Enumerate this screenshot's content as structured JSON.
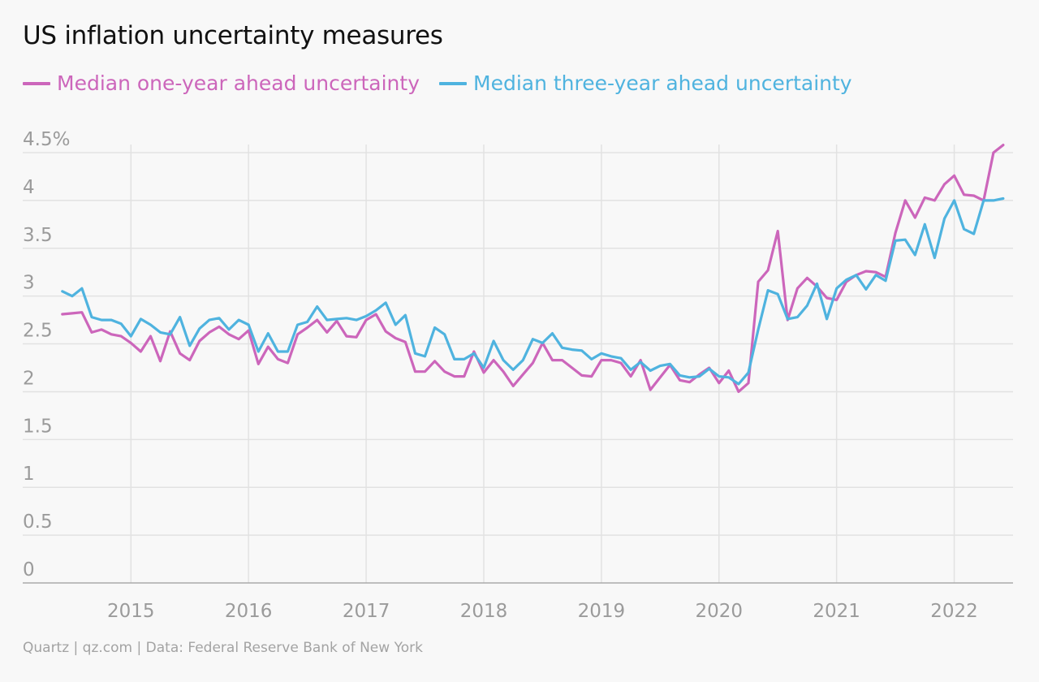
{
  "title": "US inflation uncertainty measures",
  "footer": "Quartz | qz.com | Data: Federal Reserve Bank of New York",
  "colors": {
    "one_year": "#cc66bb",
    "three_year": "#4fb3df",
    "grid": "#e2e2e2",
    "axis": "#aaaaaa"
  },
  "chart_data": {
    "type": "line",
    "title": "US inflation uncertainty measures",
    "xlabel": "",
    "ylabel": "",
    "ylim": [
      0,
      4.5
    ],
    "xlim": [
      2014.08,
      2022.5
    ],
    "y_ticks": [
      {
        "value": 0,
        "label": "0"
      },
      {
        "value": 0.5,
        "label": "0.5"
      },
      {
        "value": 1,
        "label": "1"
      },
      {
        "value": 1.5,
        "label": "1.5"
      },
      {
        "value": 2,
        "label": "2"
      },
      {
        "value": 2.5,
        "label": "2.5"
      },
      {
        "value": 3,
        "label": "3"
      },
      {
        "value": 3.5,
        "label": "3.5"
      },
      {
        "value": 4,
        "label": "4"
      },
      {
        "value": 4.5,
        "label": "4.5%"
      }
    ],
    "x_ticks": [
      {
        "value": 2015,
        "label": "2015"
      },
      {
        "value": 2016,
        "label": "2016"
      },
      {
        "value": 2017,
        "label": "2017"
      },
      {
        "value": 2018,
        "label": "2018"
      },
      {
        "value": 2019,
        "label": "2019"
      },
      {
        "value": 2020,
        "label": "2020"
      },
      {
        "value": 2021,
        "label": "2021"
      },
      {
        "value": 2022,
        "label": "2022"
      }
    ],
    "grid": true,
    "legend_position": "top-left",
    "x_start": "2014-06",
    "x_step": "month",
    "series": [
      {
        "name": "Median one-year ahead uncertainty",
        "color": "#cc66bb",
        "values": [
          2.81,
          2.82,
          2.83,
          2.62,
          2.65,
          2.6,
          2.58,
          2.51,
          2.42,
          2.58,
          2.32,
          2.63,
          2.4,
          2.33,
          2.53,
          2.62,
          2.68,
          2.6,
          2.55,
          2.64,
          2.29,
          2.47,
          2.34,
          2.3,
          2.6,
          2.67,
          2.75,
          2.62,
          2.74,
          2.58,
          2.57,
          2.75,
          2.81,
          2.63,
          2.56,
          2.52,
          2.21,
          2.21,
          2.32,
          2.21,
          2.16,
          2.16,
          2.42,
          2.2,
          2.33,
          2.21,
          2.06,
          2.18,
          2.3,
          2.51,
          2.33,
          2.33,
          2.25,
          2.17,
          2.16,
          2.33,
          2.33,
          2.3,
          2.16,
          2.33,
          2.02,
          2.15,
          2.28,
          2.12,
          2.1,
          2.18,
          2.25,
          2.09,
          2.22,
          2.0,
          2.09,
          3.15,
          3.27,
          3.68,
          2.75,
          3.08,
          3.19,
          3.1,
          2.98,
          2.96,
          3.15,
          3.22,
          3.26,
          3.25,
          3.2,
          3.66,
          4.0,
          3.82,
          4.03,
          4.0,
          4.17,
          4.26,
          4.06,
          4.05,
          4.0,
          4.5,
          4.58
        ]
      },
      {
        "name": "Median three-year ahead uncertainty",
        "color": "#4fb3df",
        "values": [
          3.05,
          3.0,
          3.08,
          2.78,
          2.75,
          2.75,
          2.71,
          2.58,
          2.76,
          2.7,
          2.62,
          2.6,
          2.78,
          2.48,
          2.66,
          2.75,
          2.77,
          2.65,
          2.75,
          2.7,
          2.42,
          2.61,
          2.42,
          2.42,
          2.7,
          2.73,
          2.89,
          2.75,
          2.76,
          2.77,
          2.75,
          2.79,
          2.85,
          2.93,
          2.7,
          2.8,
          2.4,
          2.37,
          2.67,
          2.6,
          2.34,
          2.34,
          2.4,
          2.25,
          2.53,
          2.33,
          2.23,
          2.33,
          2.55,
          2.51,
          2.61,
          2.46,
          2.44,
          2.43,
          2.34,
          2.4,
          2.37,
          2.35,
          2.23,
          2.31,
          2.22,
          2.27,
          2.29,
          2.17,
          2.15,
          2.16,
          2.24,
          2.16,
          2.15,
          2.08,
          2.2,
          2.65,
          3.06,
          3.02,
          2.76,
          2.78,
          2.9,
          3.13,
          2.76,
          3.08,
          3.17,
          3.22,
          3.07,
          3.22,
          3.16,
          3.58,
          3.59,
          3.43,
          3.75,
          3.4,
          3.81,
          4.0,
          3.7,
          3.65,
          4.0,
          4.0,
          4.02
        ]
      }
    ]
  }
}
